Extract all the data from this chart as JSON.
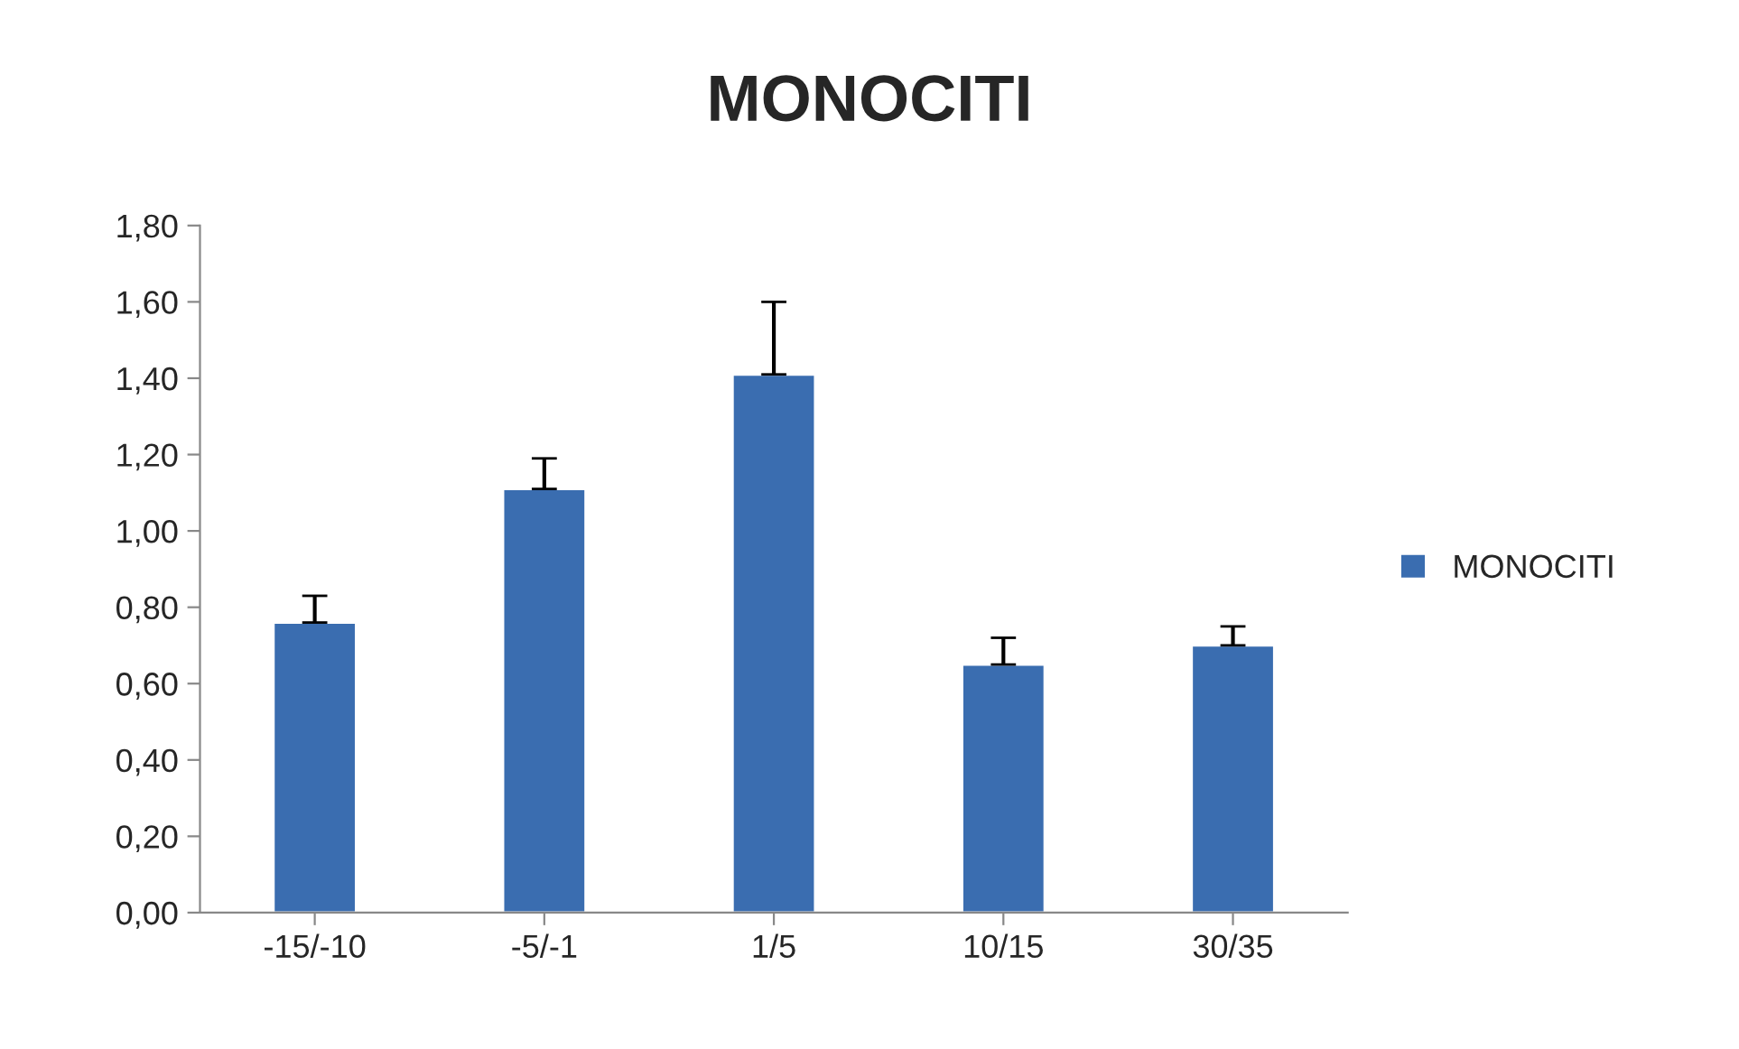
{
  "chart_data": {
    "type": "bar",
    "title": "MONOCITI",
    "categories": [
      "-15/-10",
      "-5/-1",
      "1/5",
      "10/15",
      "30/35"
    ],
    "series": [
      {
        "name": "MONOCITI",
        "color": "#3a6db0",
        "values": [
          0.76,
          1.11,
          1.41,
          0.65,
          0.7
        ],
        "errors": [
          [
            0.76,
            0.83
          ],
          [
            1.11,
            1.19
          ],
          [
            1.41,
            1.6
          ],
          [
            0.65,
            0.72
          ],
          [
            0.7,
            0.75
          ]
        ]
      }
    ],
    "ylim": [
      0,
      1.8
    ],
    "yticks": [
      {
        "value": 0,
        "label": "0,00"
      },
      {
        "value": 0.2,
        "label": "0,20"
      },
      {
        "value": 0.4,
        "label": "0,40"
      },
      {
        "value": 0.6,
        "label": "0,60"
      },
      {
        "value": 0.8,
        "label": "0,80"
      },
      {
        "value": 1.0,
        "label": "1,00"
      },
      {
        "value": 1.2,
        "label": "1,20"
      },
      {
        "value": 1.4,
        "label": "1,40"
      },
      {
        "value": 1.6,
        "label": "1,60"
      },
      {
        "value": 1.8,
        "label": "1,80"
      }
    ],
    "grid": false,
    "legend": "right"
  }
}
